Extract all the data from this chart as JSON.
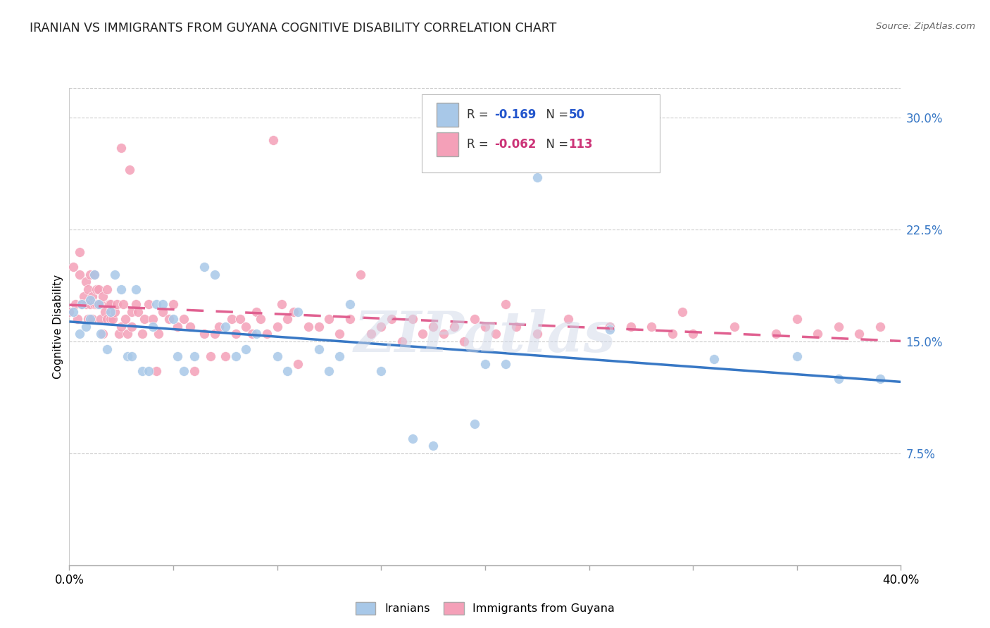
{
  "title": "IRANIAN VS IMMIGRANTS FROM GUYANA COGNITIVE DISABILITY CORRELATION CHART",
  "source": "Source: ZipAtlas.com",
  "ylabel": "Cognitive Disability",
  "y_ticks": [
    0.075,
    0.15,
    0.225,
    0.3
  ],
  "y_tick_labels": [
    "7.5%",
    "15.0%",
    "22.5%",
    "30.0%"
  ],
  "x_range": [
    0.0,
    0.4
  ],
  "y_range": [
    0.0,
    0.32
  ],
  "iranians_color": "#a8c8e8",
  "guyana_color": "#f4a0b8",
  "trend_iranian_color": "#3878c5",
  "trend_guyana_color": "#e06090",
  "watermark": "ZIPatlas",
  "r_iranian": -0.169,
  "n_iranian": 50,
  "r_guyana": -0.062,
  "n_guyana": 113,
  "iranian_points": [
    [
      0.002,
      0.17
    ],
    [
      0.005,
      0.155
    ],
    [
      0.006,
      0.175
    ],
    [
      0.008,
      0.16
    ],
    [
      0.01,
      0.178
    ],
    [
      0.01,
      0.165
    ],
    [
      0.012,
      0.195
    ],
    [
      0.014,
      0.175
    ],
    [
      0.015,
      0.155
    ],
    [
      0.018,
      0.145
    ],
    [
      0.02,
      0.17
    ],
    [
      0.022,
      0.195
    ],
    [
      0.025,
      0.185
    ],
    [
      0.028,
      0.14
    ],
    [
      0.03,
      0.14
    ],
    [
      0.032,
      0.185
    ],
    [
      0.035,
      0.13
    ],
    [
      0.038,
      0.13
    ],
    [
      0.04,
      0.16
    ],
    [
      0.042,
      0.175
    ],
    [
      0.045,
      0.175
    ],
    [
      0.05,
      0.165
    ],
    [
      0.052,
      0.14
    ],
    [
      0.055,
      0.13
    ],
    [
      0.06,
      0.14
    ],
    [
      0.065,
      0.2
    ],
    [
      0.07,
      0.195
    ],
    [
      0.075,
      0.16
    ],
    [
      0.08,
      0.14
    ],
    [
      0.085,
      0.145
    ],
    [
      0.09,
      0.155
    ],
    [
      0.1,
      0.14
    ],
    [
      0.105,
      0.13
    ],
    [
      0.11,
      0.17
    ],
    [
      0.12,
      0.145
    ],
    [
      0.125,
      0.13
    ],
    [
      0.13,
      0.14
    ],
    [
      0.135,
      0.175
    ],
    [
      0.15,
      0.13
    ],
    [
      0.165,
      0.085
    ],
    [
      0.175,
      0.08
    ],
    [
      0.195,
      0.095
    ],
    [
      0.2,
      0.135
    ],
    [
      0.21,
      0.135
    ],
    [
      0.225,
      0.26
    ],
    [
      0.26,
      0.158
    ],
    [
      0.31,
      0.138
    ],
    [
      0.35,
      0.14
    ],
    [
      0.37,
      0.125
    ],
    [
      0.39,
      0.125
    ]
  ],
  "guyana_points": [
    [
      0.0,
      0.17
    ],
    [
      0.002,
      0.2
    ],
    [
      0.003,
      0.175
    ],
    [
      0.004,
      0.165
    ],
    [
      0.005,
      0.195
    ],
    [
      0.005,
      0.21
    ],
    [
      0.006,
      0.175
    ],
    [
      0.007,
      0.18
    ],
    [
      0.008,
      0.175
    ],
    [
      0.008,
      0.19
    ],
    [
      0.009,
      0.165
    ],
    [
      0.009,
      0.185
    ],
    [
      0.01,
      0.175
    ],
    [
      0.01,
      0.195
    ],
    [
      0.011,
      0.18
    ],
    [
      0.011,
      0.165
    ],
    [
      0.012,
      0.175
    ],
    [
      0.012,
      0.195
    ],
    [
      0.013,
      0.185
    ],
    [
      0.013,
      0.175
    ],
    [
      0.014,
      0.175
    ],
    [
      0.014,
      0.185
    ],
    [
      0.015,
      0.175
    ],
    [
      0.015,
      0.165
    ],
    [
      0.016,
      0.18
    ],
    [
      0.016,
      0.155
    ],
    [
      0.017,
      0.17
    ],
    [
      0.018,
      0.165
    ],
    [
      0.018,
      0.185
    ],
    [
      0.019,
      0.175
    ],
    [
      0.02,
      0.165
    ],
    [
      0.02,
      0.175
    ],
    [
      0.021,
      0.165
    ],
    [
      0.022,
      0.17
    ],
    [
      0.023,
      0.175
    ],
    [
      0.024,
      0.155
    ],
    [
      0.025,
      0.16
    ],
    [
      0.025,
      0.28
    ],
    [
      0.026,
      0.175
    ],
    [
      0.027,
      0.165
    ],
    [
      0.028,
      0.155
    ],
    [
      0.029,
      0.265
    ],
    [
      0.03,
      0.16
    ],
    [
      0.03,
      0.17
    ],
    [
      0.032,
      0.175
    ],
    [
      0.033,
      0.17
    ],
    [
      0.035,
      0.155
    ],
    [
      0.036,
      0.165
    ],
    [
      0.038,
      0.175
    ],
    [
      0.04,
      0.165
    ],
    [
      0.042,
      0.13
    ],
    [
      0.043,
      0.155
    ],
    [
      0.045,
      0.17
    ],
    [
      0.048,
      0.165
    ],
    [
      0.05,
      0.175
    ],
    [
      0.052,
      0.16
    ],
    [
      0.055,
      0.165
    ],
    [
      0.058,
      0.16
    ],
    [
      0.06,
      0.13
    ],
    [
      0.065,
      0.155
    ],
    [
      0.068,
      0.14
    ],
    [
      0.07,
      0.155
    ],
    [
      0.072,
      0.16
    ],
    [
      0.075,
      0.14
    ],
    [
      0.078,
      0.165
    ],
    [
      0.08,
      0.155
    ],
    [
      0.082,
      0.165
    ],
    [
      0.085,
      0.16
    ],
    [
      0.088,
      0.155
    ],
    [
      0.09,
      0.17
    ],
    [
      0.092,
      0.165
    ],
    [
      0.095,
      0.155
    ],
    [
      0.098,
      0.285
    ],
    [
      0.1,
      0.16
    ],
    [
      0.102,
      0.175
    ],
    [
      0.105,
      0.165
    ],
    [
      0.108,
      0.17
    ],
    [
      0.11,
      0.135
    ],
    [
      0.115,
      0.16
    ],
    [
      0.12,
      0.16
    ],
    [
      0.125,
      0.165
    ],
    [
      0.13,
      0.155
    ],
    [
      0.135,
      0.165
    ],
    [
      0.14,
      0.195
    ],
    [
      0.145,
      0.155
    ],
    [
      0.15,
      0.16
    ],
    [
      0.155,
      0.165
    ],
    [
      0.16,
      0.15
    ],
    [
      0.165,
      0.165
    ],
    [
      0.17,
      0.155
    ],
    [
      0.175,
      0.16
    ],
    [
      0.18,
      0.155
    ],
    [
      0.185,
      0.16
    ],
    [
      0.19,
      0.15
    ],
    [
      0.195,
      0.165
    ],
    [
      0.2,
      0.16
    ],
    [
      0.205,
      0.155
    ],
    [
      0.21,
      0.175
    ],
    [
      0.215,
      0.16
    ],
    [
      0.225,
      0.155
    ],
    [
      0.24,
      0.165
    ],
    [
      0.26,
      0.16
    ],
    [
      0.27,
      0.16
    ],
    [
      0.28,
      0.16
    ],
    [
      0.29,
      0.155
    ],
    [
      0.295,
      0.17
    ],
    [
      0.3,
      0.155
    ],
    [
      0.32,
      0.16
    ],
    [
      0.34,
      0.155
    ],
    [
      0.35,
      0.165
    ],
    [
      0.36,
      0.155
    ],
    [
      0.37,
      0.16
    ],
    [
      0.38,
      0.155
    ],
    [
      0.39,
      0.16
    ]
  ]
}
